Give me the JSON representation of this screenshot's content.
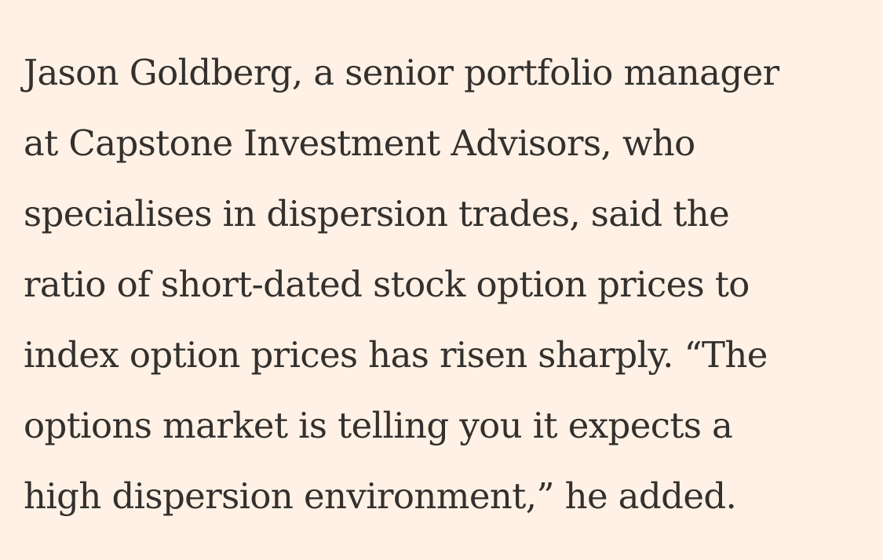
{
  "colors": {
    "background": "#FFF1E5",
    "text": "#33302E"
  },
  "article": {
    "paragraph_lines": [
      "Jason Goldberg, a senior portfolio manager",
      "at Capstone Investment Advisors, who",
      "specialises in dispersion trades, said the",
      "ratio of short-dated stock option prices to",
      "index option prices has risen sharply. “The",
      "options market is telling you it expects a",
      "high dispersion environment,” he added."
    ]
  }
}
